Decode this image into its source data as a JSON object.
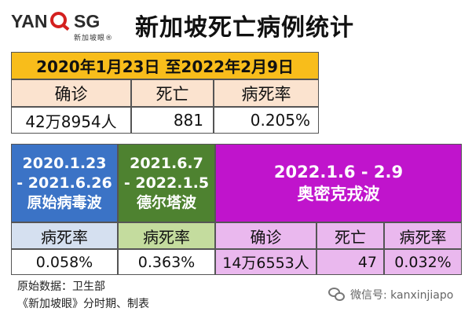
{
  "header": {
    "logo_left": "YAN",
    "logo_right": "SG",
    "logo_sub": "新加坡眼®",
    "title": "新加坡死亡病例统计"
  },
  "summary": {
    "period": "2020年1月23日 至2022年2月9日",
    "headers": [
      "确诊",
      "死亡",
      "病死率"
    ],
    "values": [
      "42万8954人",
      "881",
      "0.205%"
    ]
  },
  "waves": {
    "original": {
      "period_line1": "2020.1.23",
      "period_line2": "- 2021.6.26",
      "name": "原始病毒波",
      "rate_header": "病死率",
      "rate": "0.058%"
    },
    "delta": {
      "period_line1": "2021.6.7",
      "period_line2": "- 2022.1.5",
      "name": "德尔塔波",
      "rate_header": "病死率",
      "rate": "0.363%"
    },
    "omicron": {
      "period": "2022.1.6 - 2.9",
      "name": "奥密克戎波",
      "headers": [
        "确诊",
        "死亡",
        "病死率"
      ],
      "values": [
        "14万6553人",
        "47",
        "0.032%"
      ]
    }
  },
  "footer": {
    "source": "原始数据：卫生部",
    "credit": "《新加坡眼》分时期、制表",
    "wechat": "微信号: kanxinjiapo"
  },
  "colors": {
    "gold": "#f8bd1b",
    "peach": "#fbe3cf",
    "blue": "#3b73c6",
    "green": "#4e8230",
    "purple": "#c014cc"
  }
}
